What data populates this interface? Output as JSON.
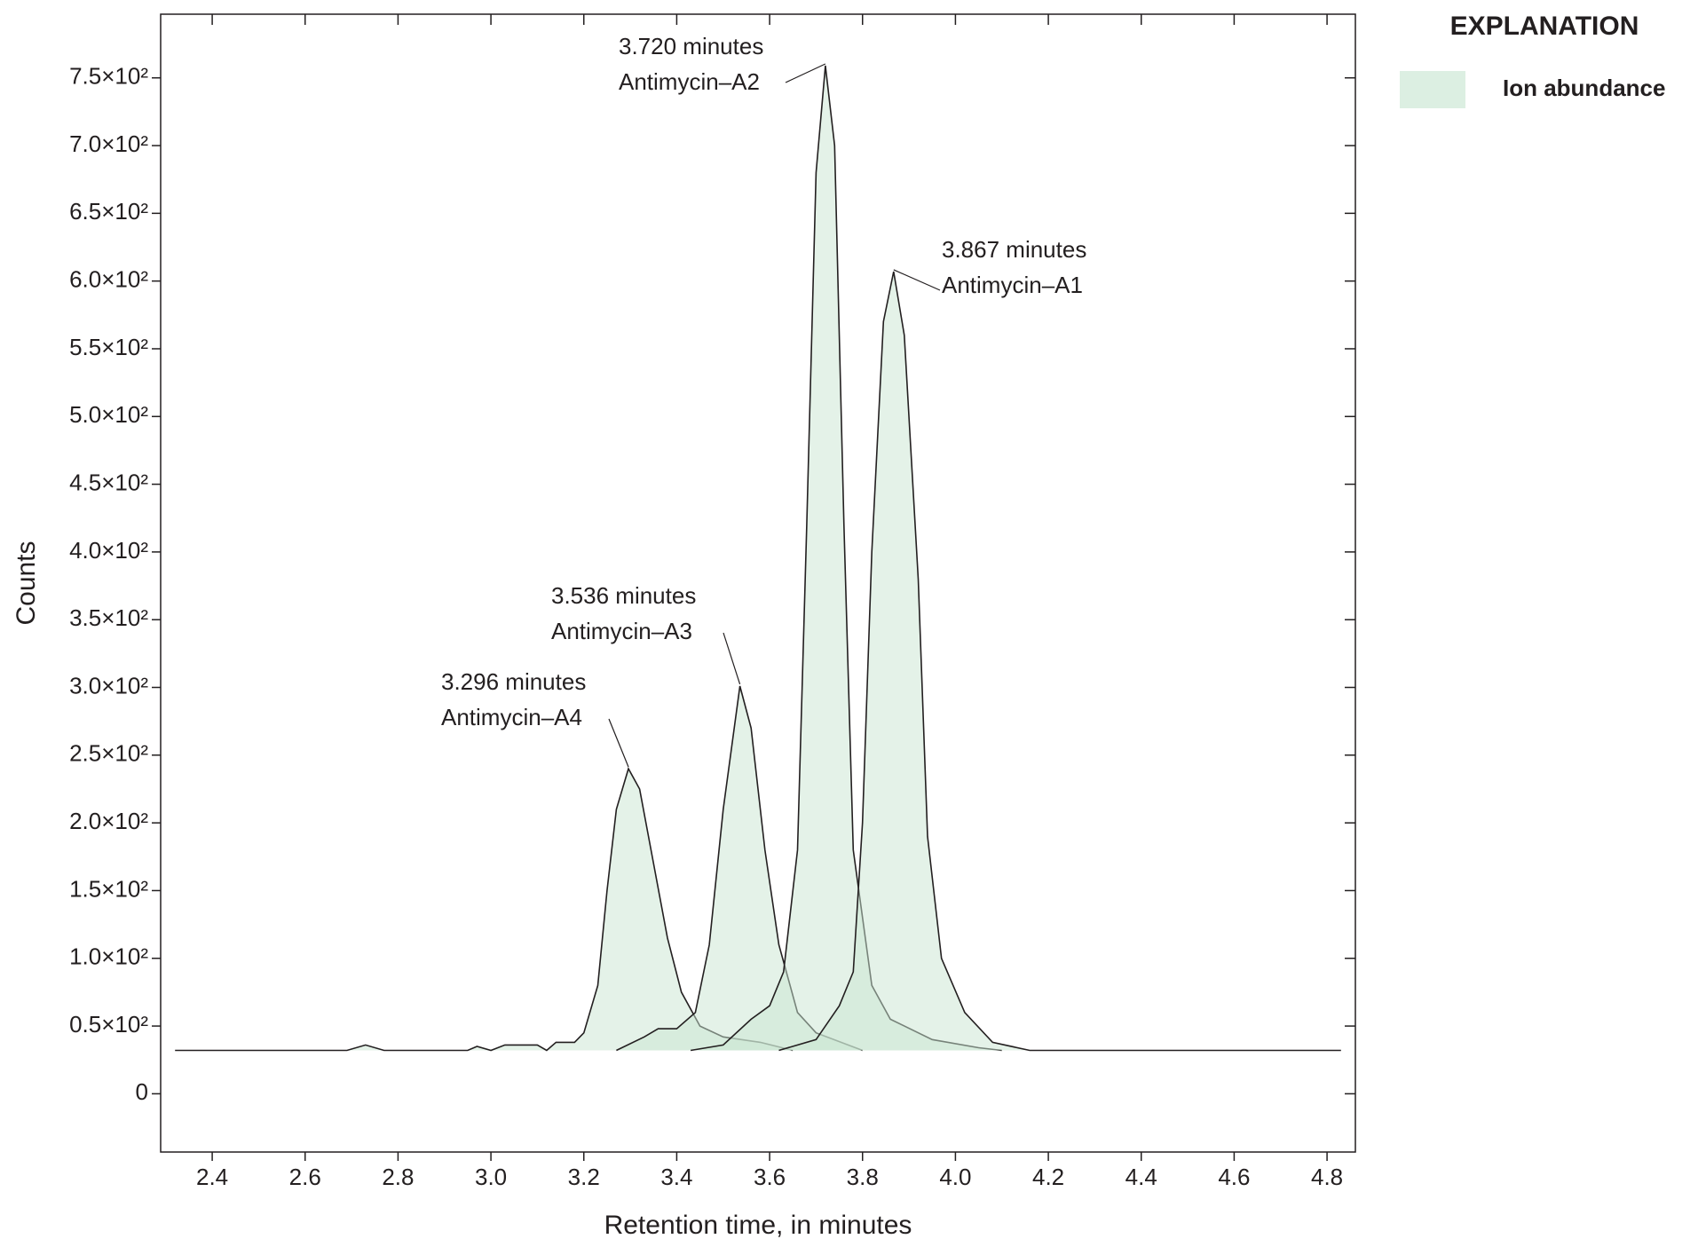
{
  "chart_data": {
    "type": "area",
    "xlabel": "Retention time, in minutes",
    "ylabel": "Counts",
    "legend_title": "EXPLANATION",
    "legend": "Ion abundance",
    "color": "#c9e6d2",
    "xlim": [
      2.289,
      4.861
    ],
    "ylim": [
      -43,
      797
    ],
    "xticks": [
      2.4,
      2.6,
      2.8,
      {
        "value": 3,
        "label": "3.0"
      },
      3.2,
      3.4,
      3.6,
      3.8,
      {
        "value": 4,
        "label": "4.0"
      },
      4.2,
      4.4,
      4.6,
      4.8
    ],
    "yticks": [
      0,
      {
        "value": 50,
        "label": "0.5×10²"
      },
      {
        "value": 100,
        "label": "1.0×10²"
      },
      {
        "value": 150,
        "label": "1.5×10²"
      },
      {
        "value": 200,
        "label": "2.0×10²"
      },
      {
        "value": 250,
        "label": "2.5×10²"
      },
      {
        "value": 300,
        "label": "3.0×10²"
      },
      {
        "value": 350,
        "label": "3.5×10²"
      },
      {
        "value": 400,
        "label": "4.0×10²"
      },
      {
        "value": 450,
        "label": "4.5×10²"
      },
      {
        "value": 500,
        "label": "5.0×10²"
      },
      {
        "value": 550,
        "label": "5.5×10²"
      },
      {
        "value": 600,
        "label": "6.0×10²"
      },
      {
        "value": 650,
        "label": "6.5×10²"
      },
      {
        "value": 700,
        "label": "7.0×10²"
      },
      {
        "value": 750,
        "label": "7.5×10²"
      }
    ],
    "series": [
      {
        "label_lines": [
          "3.296 minutes",
          "Antimycin–A4"
        ],
        "x": [
          2.32,
          2.69,
          2.73,
          2.77,
          2.95,
          2.97,
          3.0,
          3.03,
          3.1,
          3.12,
          3.14,
          3.18,
          3.2,
          3.23,
          3.25,
          3.27,
          3.296,
          3.32,
          3.35,
          3.38,
          3.41,
          3.45,
          3.5,
          3.58,
          3.65
        ],
        "values": [
          32,
          32,
          36,
          32,
          32,
          35,
          32,
          36,
          36,
          32,
          38,
          38,
          45,
          80,
          150,
          210,
          240,
          225,
          170,
          115,
          75,
          50,
          42,
          38,
          32
        ]
      },
      {
        "label_lines": [
          "3.536 minutes",
          "Antimycin–A3"
        ],
        "x": [
          3.27,
          3.33,
          3.36,
          3.4,
          3.44,
          3.47,
          3.5,
          3.536,
          3.56,
          3.59,
          3.62,
          3.66,
          3.7,
          3.8
        ],
        "values": [
          32,
          42,
          48,
          48,
          60,
          110,
          210,
          301,
          270,
          180,
          110,
          60,
          45,
          32
        ]
      },
      {
        "label_lines": [
          "3.720 minutes",
          "Antimycin–A2"
        ],
        "x": [
          3.43,
          3.5,
          3.56,
          3.6,
          3.63,
          3.66,
          3.68,
          3.7,
          3.72,
          3.74,
          3.76,
          3.78,
          3.82,
          3.86,
          3.95,
          4.05,
          4.1
        ],
        "values": [
          32,
          36,
          55,
          65,
          90,
          180,
          420,
          680,
          759,
          700,
          420,
          180,
          80,
          55,
          40,
          34,
          32
        ]
      },
      {
        "label_lines": [
          "3.867 minutes",
          "Antimycin–A1"
        ],
        "x": [
          3.62,
          3.7,
          3.75,
          3.78,
          3.8,
          3.82,
          3.845,
          3.867,
          3.89,
          3.92,
          3.94,
          3.97,
          4.02,
          4.08,
          4.16,
          4.83
        ],
        "values": [
          32,
          40,
          65,
          90,
          200,
          400,
          570,
          607,
          560,
          380,
          190,
          100,
          60,
          38,
          32,
          32
        ]
      }
    ]
  }
}
